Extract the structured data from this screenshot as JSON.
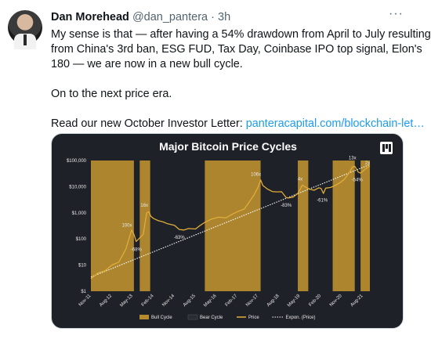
{
  "tweet": {
    "author_name": "Dan Morehead",
    "handle": "@dan_pantera",
    "separator": "·",
    "time": "3h",
    "more_icon": "ellipsis-icon",
    "lines": [
      "My sense is that — after having a 54% drawdown from April to July resulting",
      "from China's 3rd ban, ESG FUD, Tax Day, Coinbase IPO top signal, Elon's",
      "180 — we are now in a new bull cycle."
    ],
    "line2": "On to the next price era.",
    "line3_prefix": "Read our new October Investor Letter: ",
    "line3_link": "panteracapital.com/blockchain-let…"
  },
  "chart_data": {
    "type": "line",
    "title": "Major Bitcoin Price Cycles",
    "y_scale": "log",
    "y_ticks": [
      "$100,000",
      "$10,000",
      "$1,000",
      "$100",
      "$10",
      "$1"
    ],
    "y_tick_values": [
      100000,
      10000,
      1000,
      100,
      10,
      1
    ],
    "x_ticks": [
      "Nov-11",
      "Aug-12",
      "May-13",
      "Feb-14",
      "Nov-14",
      "Aug-15",
      "May-16",
      "Feb-17",
      "Nov-17",
      "Aug-18",
      "May-19",
      "Feb-20",
      "Nov-20",
      "Aug-21"
    ],
    "x_tick_months": [
      0,
      9,
      18,
      27,
      36,
      45,
      54,
      63,
      72,
      81,
      90,
      99,
      108,
      117
    ],
    "bull_cycles": [
      [
        0,
        18.5
      ],
      [
        21,
        25.5
      ],
      [
        49,
        73
      ],
      [
        89,
        93.5
      ],
      [
        104,
        113.5
      ],
      [
        116,
        120
      ]
    ],
    "price_points": [
      [
        0,
        3
      ],
      [
        3,
        5
      ],
      [
        6,
        6
      ],
      [
        9,
        10
      ],
      [
        12,
        13
      ],
      [
        15,
        40
      ],
      [
        17.5,
        220
      ],
      [
        18.5,
        150
      ],
      [
        19.5,
        80
      ],
      [
        21,
        110
      ],
      [
        22.5,
        150
      ],
      [
        24,
        1000
      ],
      [
        25,
        1100
      ],
      [
        25.7,
        750
      ],
      [
        27,
        600
      ],
      [
        29,
        500
      ],
      [
        31,
        450
      ],
      [
        33,
        380
      ],
      [
        36,
        330
      ],
      [
        38,
        230
      ],
      [
        40,
        220
      ],
      [
        42,
        250
      ],
      [
        45,
        240
      ],
      [
        47,
        330
      ],
      [
        49,
        430
      ],
      [
        52,
        580
      ],
      [
        55,
        680
      ],
      [
        58,
        640
      ],
      [
        61,
        900
      ],
      [
        63,
        1100
      ],
      [
        66,
        1400
      ],
      [
        68,
        2500
      ],
      [
        70,
        4600
      ],
      [
        72,
        10000
      ],
      [
        73,
        18000
      ],
      [
        74,
        11000
      ],
      [
        76,
        8000
      ],
      [
        78,
        6500
      ],
      [
        80,
        6300
      ],
      [
        82,
        6400
      ],
      [
        84,
        3800
      ],
      [
        85,
        3700
      ],
      [
        87,
        4000
      ],
      [
        89,
        5500
      ],
      [
        91,
        11500
      ],
      [
        92,
        10000
      ],
      [
        94,
        8000
      ],
      [
        96,
        7300
      ],
      [
        98,
        9000
      ],
      [
        99,
        8600
      ],
      [
        100,
        5500
      ],
      [
        101,
        8800
      ],
      [
        103,
        9300
      ],
      [
        105,
        11000
      ],
      [
        107,
        13800
      ],
      [
        109,
        19000
      ],
      [
        111,
        33000
      ],
      [
        112.5,
        57000
      ],
      [
        113.5,
        60000
      ],
      [
        115,
        36000
      ],
      [
        116,
        33000
      ],
      [
        118,
        47000
      ],
      [
        120,
        62000
      ]
    ],
    "expon_start": [
      0,
      3.5
    ],
    "expon_end": [
      120,
      70000
    ],
    "annotations": [
      {
        "text": "100x",
        "m": 15.5,
        "v": 300
      },
      {
        "text": "-68%",
        "m": 19.5,
        "v": 35
      },
      {
        "text": "16x",
        "m": 23,
        "v": 1700
      },
      {
        "text": "-63%",
        "m": 38,
        "v": 100
      },
      {
        "text": "106x",
        "m": 71,
        "v": 26000
      },
      {
        "text": "-83%",
        "m": 84,
        "v": 1700
      },
      {
        "text": "4x",
        "m": 90,
        "v": 17000
      },
      {
        "text": "-61%",
        "m": 99.5,
        "v": 2700
      },
      {
        "text": "13x",
        "m": 112.5,
        "v": 110000
      },
      {
        "text": "2x",
        "m": 119,
        "v": 70000
      },
      {
        "text": "-54%",
        "m": 114.5,
        "v": 16000
      }
    ],
    "legend": [
      {
        "label": "Bull Cycle",
        "kind": "box"
      },
      {
        "label": "Bear Cycle",
        "kind": "box-dark"
      },
      {
        "label": "Price",
        "kind": "line"
      },
      {
        "label": "Expon. (Price)",
        "kind": "dotted"
      }
    ],
    "legend_position": "bottom",
    "colors": {
      "background": "#1f2128",
      "bull": "#b58b2e",
      "price": "#e0ad3a",
      "trend": "#ffffff",
      "text": "#e8e8e8"
    },
    "logo_icon": "pantera-logo-icon"
  }
}
